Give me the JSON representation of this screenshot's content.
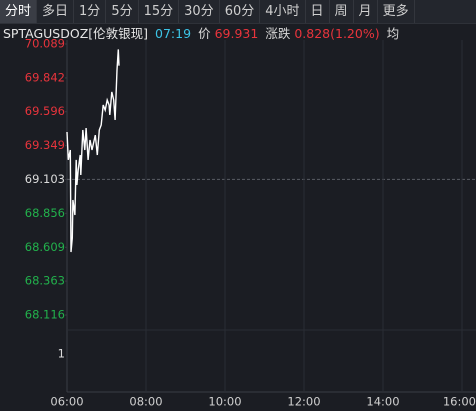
{
  "tabs": [
    "分时",
    "多日",
    "1分",
    "5分",
    "15分",
    "30分",
    "60分",
    "4小时",
    "日",
    "周",
    "月",
    "更多"
  ],
  "header": {
    "symbol": "SPTAGUSDOZ[伦敦银现]",
    "time": "07:19",
    "price_label": "价",
    "price": "69.931",
    "change_label": "涨跌",
    "change": "0.828(1.20%)",
    "avg_label": "均"
  },
  "chart_data": {
    "type": "line",
    "x": [
      "06:00",
      "06:02",
      "06:05",
      "06:06",
      "06:08",
      "06:09",
      "06:12",
      "06:14",
      "06:15",
      "06:17",
      "06:20",
      "06:21",
      "06:24",
      "06:27",
      "06:29",
      "06:32",
      "06:35",
      "06:38",
      "06:43",
      "06:46",
      "06:49",
      "06:52",
      "06:55",
      "06:58",
      "07:01",
      "07:04",
      "07:05",
      "07:08",
      "07:11",
      "07:13",
      "07:16",
      "07:18",
      "07:19"
    ],
    "series": [
      {
        "name": "SPTAGUSDOZ",
        "color": "#ffffff",
        "values": [
          69.448,
          69.245,
          69.317,
          68.575,
          68.677,
          68.953,
          68.844,
          69.245,
          69.063,
          69.172,
          69.281,
          69.135,
          69.463,
          69.317,
          69.477,
          69.245,
          69.39,
          69.317,
          69.426,
          69.281,
          69.463,
          69.499,
          69.645,
          69.608,
          69.681,
          69.645,
          69.572,
          69.74,
          69.681,
          69.536,
          69.9,
          70.05,
          69.931
        ]
      }
    ],
    "ylim": [
      68.116,
      70.089
    ],
    "yticks": [
      70.089,
      69.842,
      69.596,
      69.349,
      69.103,
      68.856,
      68.609,
      68.363,
      68.116
    ],
    "volume_ticks": [
      1
    ],
    "xticks": [
      "06:00",
      "08:00",
      "10:00",
      "12:00",
      "14:00",
      "16:00"
    ],
    "up_color": "#e8343c",
    "down_color": "#22b14c",
    "flat_color": "#dcdcdc"
  }
}
